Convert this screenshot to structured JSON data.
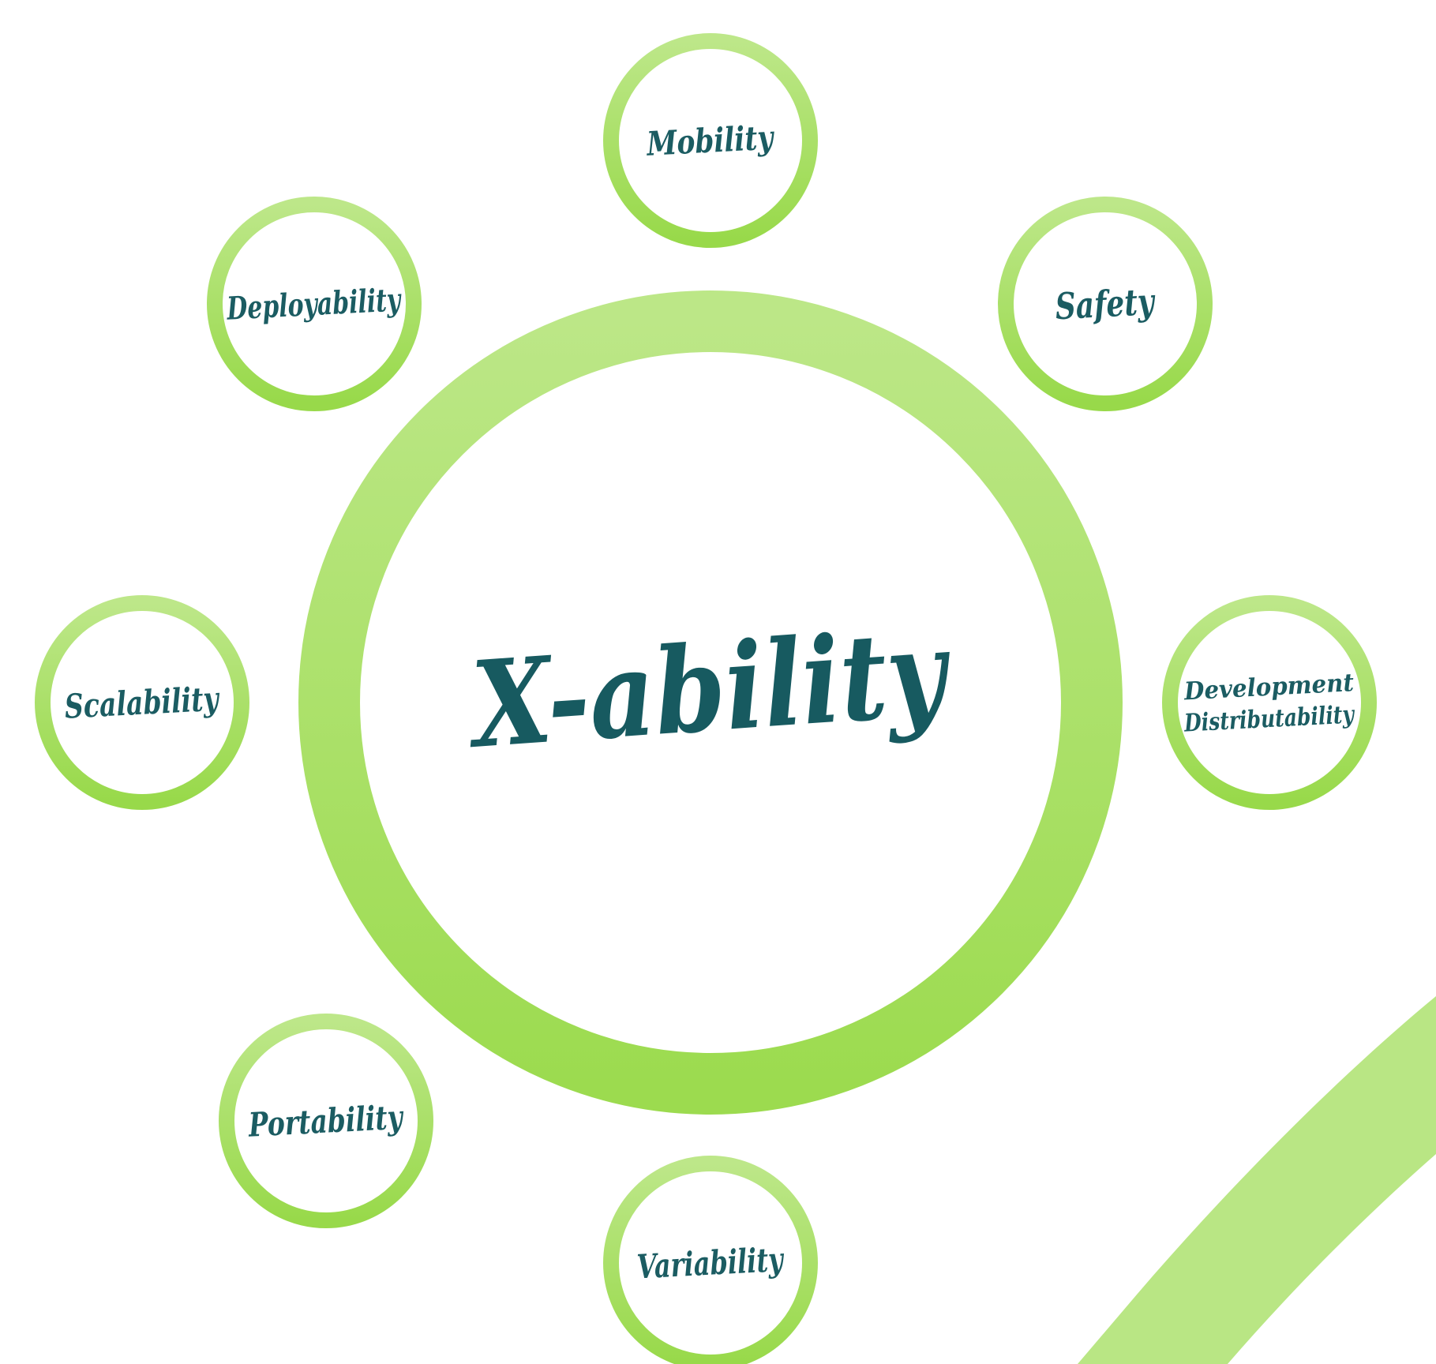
{
  "diagram": {
    "center": {
      "label": "X-ability"
    },
    "satellites": [
      {
        "id": "mobility",
        "lines": [
          "Mobility"
        ]
      },
      {
        "id": "safety",
        "lines": [
          "Safety"
        ]
      },
      {
        "id": "development-distributability",
        "lines": [
          "Development",
          "Distributability"
        ]
      },
      {
        "id": "variability",
        "lines": [
          "Variability"
        ]
      },
      {
        "id": "portability",
        "lines": [
          "Portability"
        ]
      },
      {
        "id": "scalability",
        "lines": [
          "Scalability"
        ]
      },
      {
        "id": "deployability",
        "lines": [
          "Deployability"
        ]
      }
    ]
  },
  "colors": {
    "ring_light": "#b9e684",
    "ring_dark": "#9edc52",
    "text": "#1b5c62",
    "background": "#ffffff"
  }
}
